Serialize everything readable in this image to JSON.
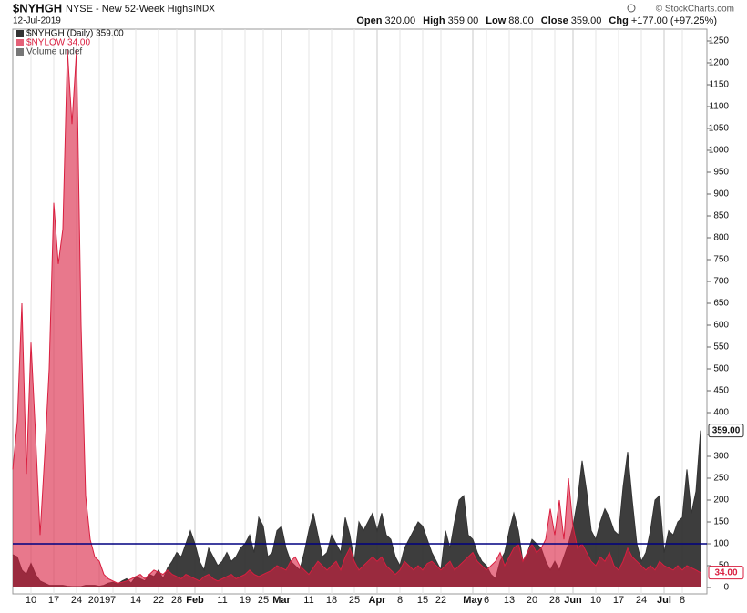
{
  "header": {
    "symbol": "$NYHGH",
    "description": "NYSE - New 52-Week Highs",
    "exchange": "INDX",
    "date": "12-Jul-2019",
    "quote": [
      {
        "label": "Open",
        "value": "320.00"
      },
      {
        "label": "High",
        "value": "359.00"
      },
      {
        "label": "Low",
        "value": "88.00"
      },
      {
        "label": "Close",
        "value": "359.00"
      },
      {
        "label": "Chg",
        "value": "+177.00 (+97.25%)"
      }
    ],
    "copyright": "© StockCharts.com"
  },
  "chart_data": {
    "type": "area",
    "categories": [
      null,
      null,
      null,
      null,
      "10",
      null,
      null,
      null,
      null,
      "17",
      null,
      null,
      null,
      null,
      "24",
      null,
      null,
      null,
      null,
      "2019",
      null,
      null,
      "7",
      null,
      null,
      null,
      null,
      "14",
      null,
      null,
      null,
      null,
      "22",
      null,
      null,
      null,
      "28",
      null,
      null,
      null,
      "Feb",
      null,
      null,
      null,
      null,
      null,
      "11",
      null,
      null,
      null,
      null,
      "19",
      null,
      null,
      null,
      "25",
      null,
      null,
      null,
      "Mar",
      null,
      null,
      null,
      null,
      null,
      "11",
      null,
      null,
      null,
      null,
      "18",
      null,
      null,
      null,
      null,
      "25",
      null,
      null,
      null,
      null,
      "Apr",
      null,
      null,
      null,
      null,
      "8",
      null,
      null,
      null,
      null,
      "15",
      null,
      null,
      null,
      "22",
      null,
      null,
      null,
      null,
      null,
      null,
      "May",
      null,
      null,
      "6",
      null,
      null,
      null,
      null,
      "13",
      null,
      null,
      null,
      null,
      "20",
      null,
      null,
      null,
      null,
      "28",
      null,
      null,
      null,
      "Jun",
      null,
      null,
      null,
      null,
      "10",
      null,
      null,
      null,
      null,
      "17",
      null,
      null,
      null,
      null,
      "24",
      null,
      null,
      null,
      null,
      "Jul",
      null,
      null,
      null,
      "8",
      null,
      null,
      null,
      null
    ],
    "series": [
      {
        "name": "$NYHGH (Daily) 359.00",
        "color": "#333333",
        "end_label": "359.00",
        "values": [
          75,
          70,
          40,
          30,
          55,
          30,
          15,
          10,
          5,
          5,
          5,
          5,
          3,
          2,
          2,
          2,
          5,
          5,
          5,
          3,
          5,
          10,
          12,
          8,
          15,
          20,
          10,
          25,
          20,
          15,
          30,
          25,
          40,
          20,
          45,
          60,
          80,
          70,
          100,
          130,
          100,
          60,
          40,
          90,
          70,
          50,
          60,
          80,
          60,
          70,
          90,
          100,
          120,
          80,
          160,
          140,
          70,
          80,
          130,
          140,
          90,
          60,
          50,
          40,
          80,
          130,
          170,
          120,
          70,
          80,
          120,
          100,
          80,
          160,
          120,
          60,
          150,
          130,
          150,
          170,
          130,
          170,
          120,
          110,
          70,
          50,
          90,
          110,
          130,
          150,
          140,
          110,
          80,
          60,
          40,
          130,
          90,
          150,
          200,
          210,
          120,
          110,
          80,
          60,
          50,
          30,
          20,
          60,
          80,
          130,
          170,
          130,
          60,
          80,
          110,
          100,
          90,
          60,
          40,
          60,
          40,
          70,
          100,
          140,
          200,
          290,
          220,
          130,
          110,
          150,
          180,
          160,
          130,
          120,
          230,
          310,
          200,
          100,
          60,
          80,
          130,
          200,
          210,
          80,
          130,
          120,
          150,
          160,
          270,
          170,
          220,
          359
        ]
      },
      {
        "name": "$NYLOW 34.00",
        "color": "#d91e3f",
        "end_label": "34.00",
        "values": [
          270,
          380,
          650,
          260,
          560,
          350,
          120,
          300,
          500,
          880,
          740,
          820,
          1230,
          1060,
          1230,
          600,
          210,
          110,
          70,
          60,
          30,
          20,
          15,
          10,
          12,
          15,
          20,
          25,
          30,
          20,
          30,
          40,
          35,
          30,
          40,
          30,
          25,
          20,
          30,
          25,
          20,
          15,
          25,
          30,
          20,
          15,
          20,
          25,
          30,
          20,
          25,
          30,
          40,
          30,
          25,
          30,
          35,
          40,
          50,
          45,
          40,
          60,
          70,
          50,
          40,
          30,
          45,
          60,
          50,
          40,
          50,
          60,
          40,
          70,
          90,
          60,
          40,
          50,
          60,
          70,
          60,
          70,
          50,
          40,
          30,
          40,
          60,
          50,
          40,
          50,
          40,
          55,
          60,
          50,
          40,
          50,
          60,
          40,
          50,
          60,
          70,
          80,
          60,
          50,
          40,
          50,
          60,
          80,
          50,
          70,
          90,
          100,
          60,
          80,
          100,
          80,
          90,
          110,
          180,
          120,
          200,
          110,
          250,
          140,
          90,
          100,
          80,
          60,
          50,
          70,
          60,
          80,
          50,
          40,
          60,
          90,
          70,
          60,
          50,
          40,
          50,
          40,
          60,
          50,
          45,
          40,
          50,
          40,
          50,
          45,
          40,
          34
        ]
      }
    ],
    "legend_extra": "Volume undef",
    "reference_line": 100,
    "reference_color": "#000080",
    "ylim": [
      0,
      1250
    ],
    "yticks": [
      0,
      50,
      100,
      150,
      200,
      250,
      300,
      350,
      400,
      450,
      500,
      550,
      600,
      650,
      700,
      750,
      800,
      850,
      900,
      950,
      1000,
      1050,
      1100,
      1150,
      1200,
      1250
    ],
    "grid": "x",
    "legend": "top-left"
  }
}
